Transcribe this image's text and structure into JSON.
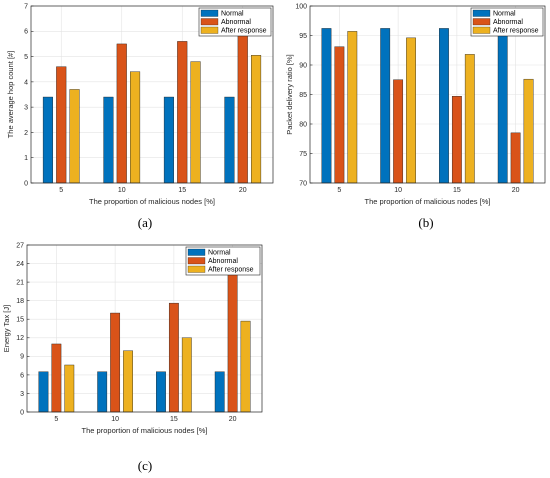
{
  "colors": {
    "normal": "#0072BD",
    "abnormal": "#D95319",
    "after": "#EDB120"
  },
  "captions": [
    "(a)",
    "(b)",
    "(c)"
  ],
  "chart_data": [
    {
      "type": "bar",
      "xlabel": "The proportion of malicious nodes [%]",
      "ylabel": "The average hop count [#]",
      "categories": [
        "5",
        "10",
        "15",
        "20"
      ],
      "ylim": [
        0,
        7
      ],
      "yticks": [
        0,
        1,
        2,
        3,
        4,
        5,
        6,
        7
      ],
      "grid": true,
      "legend": "top-right",
      "series": [
        {
          "name": "Normal",
          "values": [
            3.4,
            3.4,
            3.4,
            3.4
          ]
        },
        {
          "name": "Abnormal",
          "values": [
            4.6,
            5.5,
            5.6,
            5.9
          ]
        },
        {
          "name": "After response",
          "values": [
            3.7,
            4.4,
            4.8,
            5.05
          ]
        }
      ]
    },
    {
      "type": "bar",
      "xlabel": "The proportion of malicious nodes [%]",
      "ylabel": "Packet delivery ratio [%]",
      "categories": [
        "5",
        "10",
        "15",
        "20"
      ],
      "ylim": [
        70,
        100
      ],
      "yticks": [
        70,
        75,
        80,
        85,
        90,
        95,
        100
      ],
      "grid": true,
      "legend": "top-right",
      "series": [
        {
          "name": "Normal",
          "values": [
            96.2,
            96.2,
            96.2,
            96.2
          ]
        },
        {
          "name": "Abnormal",
          "values": [
            93.1,
            87.5,
            84.7,
            78.5
          ]
        },
        {
          "name": "After response",
          "values": [
            95.7,
            94.6,
            91.8,
            87.6
          ]
        }
      ]
    },
    {
      "type": "bar",
      "xlabel": "The proportion of malicious nodes [%]",
      "ylabel": "Energy Tax [J]",
      "categories": [
        "5",
        "10",
        "15",
        "20"
      ],
      "ylim": [
        0,
        27
      ],
      "yticks": [
        0,
        3,
        6,
        9,
        12,
        15,
        18,
        21,
        24,
        27
      ],
      "grid": true,
      "legend": "top-right",
      "series": [
        {
          "name": "Normal",
          "values": [
            6.5,
            6.5,
            6.5,
            6.5
          ]
        },
        {
          "name": "Abnormal",
          "values": [
            11.0,
            16.0,
            17.6,
            22.3
          ]
        },
        {
          "name": "After response",
          "values": [
            7.6,
            9.9,
            12.0,
            14.7
          ]
        }
      ]
    }
  ]
}
